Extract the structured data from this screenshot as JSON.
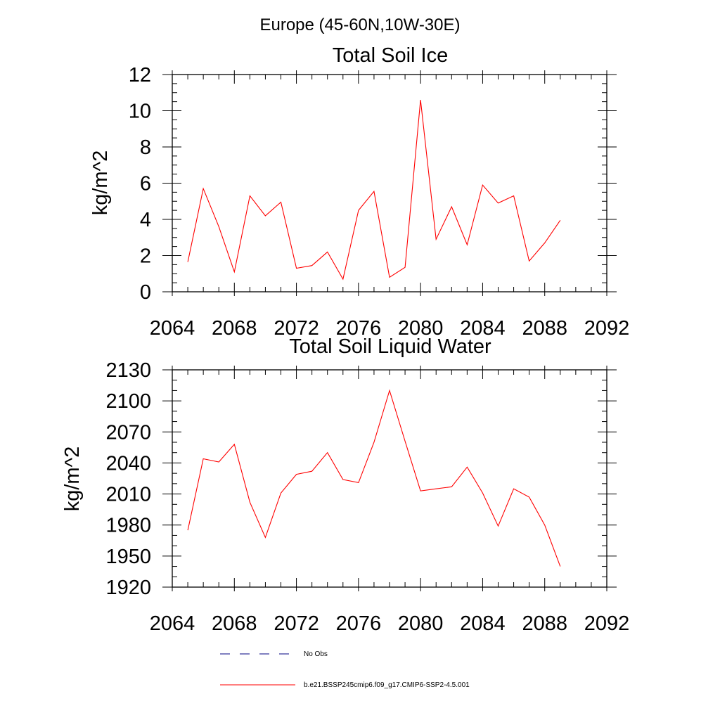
{
  "suptitle": "Europe (45-60N,10W-30E)",
  "chart_data": [
    {
      "type": "line",
      "title": "Total Soil Ice",
      "xlabel": "",
      "ylabel": "kg/m^2",
      "xlim": [
        2064,
        2092
      ],
      "ylim": [
        0,
        12
      ],
      "xticks": [
        2064,
        2068,
        2072,
        2076,
        2080,
        2084,
        2088,
        2092
      ],
      "yticks": [
        0,
        2,
        4,
        6,
        8,
        10,
        12
      ],
      "x_minor_step": 1,
      "y_minor_step": 0.5,
      "grid": false,
      "series": [
        {
          "name": "b.e21.BSSP245cmip6.f09_g17.CMIP6-SSP2-4.5.001",
          "color": "#ff0000",
          "x": [
            2065,
            2066,
            2067,
            2068,
            2069,
            2070,
            2071,
            2072,
            2073,
            2074,
            2075,
            2076,
            2077,
            2078,
            2079,
            2080,
            2081,
            2082,
            2083,
            2084,
            2085,
            2086,
            2087,
            2088,
            2089
          ],
          "values": [
            1.65,
            5.7,
            3.6,
            1.1,
            5.3,
            4.2,
            4.95,
            1.3,
            1.45,
            2.2,
            0.7,
            4.5,
            5.55,
            0.8,
            1.35,
            10.6,
            2.9,
            4.7,
            2.6,
            5.9,
            4.9,
            5.3,
            1.7,
            2.7,
            3.95
          ]
        }
      ]
    },
    {
      "type": "line",
      "title": "Total Soil Liquid Water",
      "xlabel": "",
      "ylabel": "kg/m^2",
      "xlim": [
        2064,
        2092
      ],
      "ylim": [
        1920,
        2130
      ],
      "xticks": [
        2064,
        2068,
        2072,
        2076,
        2080,
        2084,
        2088,
        2092
      ],
      "yticks": [
        1920,
        1950,
        1980,
        2010,
        2040,
        2070,
        2100,
        2130
      ],
      "x_minor_step": 1,
      "y_minor_step": 10,
      "grid": false,
      "series": [
        {
          "name": "b.e21.BSSP245cmip6.f09_g17.CMIP6-SSP2-4.5.001",
          "color": "#ff0000",
          "x": [
            2065,
            2066,
            2067,
            2068,
            2069,
            2070,
            2071,
            2072,
            2073,
            2074,
            2075,
            2076,
            2077,
            2078,
            2079,
            2080,
            2081,
            2082,
            2083,
            2084,
            2085,
            2086,
            2087,
            2088,
            2089
          ],
          "values": [
            1975,
            2044,
            2041,
            2058,
            2002,
            1968,
            2011,
            2029,
            2032,
            2050,
            2024,
            2021,
            2060,
            2110,
            2061,
            2013,
            2015,
            2017,
            2036,
            2011,
            1979,
            2015,
            2007,
            1980,
            1940
          ]
        }
      ]
    }
  ],
  "legend": {
    "placement": "bottom-center",
    "entries": [
      {
        "label": "No Obs",
        "style": "dashed",
        "color": "#000080"
      },
      {
        "label": "b.e21.BSSP245cmip6.f09_g17.CMIP6-SSP2-4.5.001",
        "style": "solid",
        "color": "#ff0000"
      }
    ]
  }
}
